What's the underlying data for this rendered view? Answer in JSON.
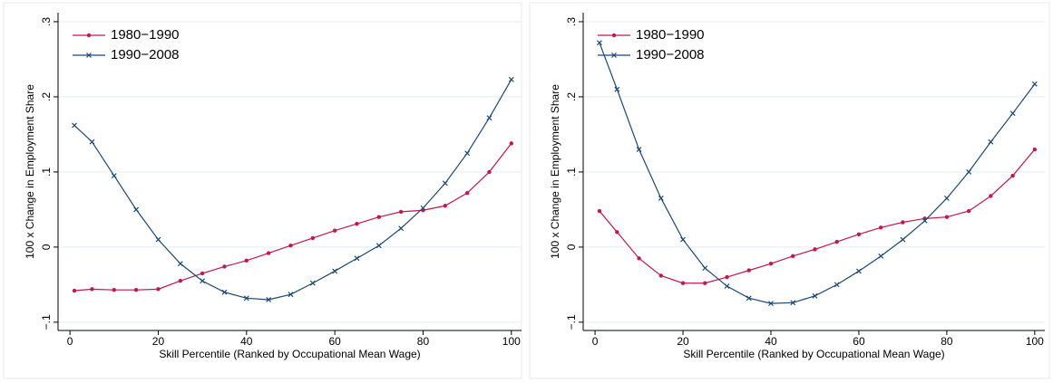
{
  "chart_data": [
    {
      "type": "line",
      "xlabel": "Skill Percentile (Ranked by Occupational Mean Wage)",
      "ylabel": "100 x Change in Employment Share",
      "x": [
        1,
        5,
        10,
        15,
        20,
        25,
        30,
        35,
        40,
        45,
        50,
        55,
        60,
        65,
        70,
        75,
        80,
        85,
        90,
        95,
        100
      ],
      "series": [
        {
          "name": "1980−1990",
          "color": "#c4164f",
          "marker": "circle",
          "values": [
            -0.058,
            -0.056,
            -0.057,
            -0.057,
            -0.056,
            -0.045,
            -0.035,
            -0.026,
            -0.018,
            -0.008,
            0.002,
            0.012,
            0.022,
            0.031,
            0.04,
            0.047,
            0.049,
            0.055,
            0.072,
            0.1,
            0.138
          ]
        },
        {
          "name": "1990−2008",
          "color": "#1a4878",
          "marker": "x",
          "values": [
            0.162,
            0.14,
            0.095,
            0.05,
            0.01,
            -0.022,
            -0.045,
            -0.06,
            -0.068,
            -0.07,
            -0.063,
            -0.048,
            -0.032,
            -0.015,
            0.002,
            0.025,
            0.052,
            0.085,
            0.125,
            0.172,
            0.223
          ]
        }
      ],
      "xlim": [
        -2.7,
        102.3
      ],
      "ylim": [
        -0.111,
        0.312
      ],
      "xticks": [
        0,
        20,
        40,
        60,
        80,
        100
      ],
      "yticks": [
        {
          "value": -0.1,
          "label": "−.1"
        },
        0,
        {
          "value": 0.1,
          "label": ".1"
        },
        {
          "value": 0.2,
          "label": ".2"
        },
        {
          "value": 0.3,
          "label": ".3"
        }
      ],
      "grid": true,
      "legend": "upper left"
    },
    {
      "type": "line",
      "xlabel": "Skill Percentile (Ranked by Occupational Mean Wage)",
      "ylabel": "100 x Change in Employment Share",
      "x": [
        1,
        5,
        10,
        15,
        20,
        25,
        30,
        35,
        40,
        45,
        50,
        55,
        60,
        65,
        70,
        75,
        80,
        85,
        90,
        95,
        100
      ],
      "series": [
        {
          "name": "1980−1990",
          "color": "#c4164f",
          "marker": "circle",
          "values": [
            0.048,
            0.02,
            -0.015,
            -0.038,
            -0.048,
            -0.048,
            -0.04,
            -0.031,
            -0.022,
            -0.012,
            -0.003,
            0.007,
            0.017,
            0.026,
            0.033,
            0.038,
            0.04,
            0.048,
            0.068,
            0.095,
            0.13
          ]
        },
        {
          "name": "1990−2008",
          "color": "#1a4878",
          "marker": "x",
          "values": [
            0.272,
            0.21,
            0.13,
            0.065,
            0.01,
            -0.028,
            -0.052,
            -0.068,
            -0.075,
            -0.074,
            -0.065,
            -0.05,
            -0.032,
            -0.012,
            0.01,
            0.035,
            0.065,
            0.1,
            0.14,
            0.178,
            0.217
          ]
        }
      ],
      "xlim": [
        -2.7,
        102.3
      ],
      "ylim": [
        -0.111,
        0.312
      ],
      "xticks": [
        0,
        20,
        40,
        60,
        80,
        100
      ],
      "yticks": [
        {
          "value": -0.1,
          "label": "−.1"
        },
        0,
        {
          "value": 0.1,
          "label": ".1"
        },
        {
          "value": 0.2,
          "label": ".2"
        },
        {
          "value": 0.3,
          "label": ".3"
        }
      ],
      "grid": true,
      "legend": "upper left"
    }
  ]
}
